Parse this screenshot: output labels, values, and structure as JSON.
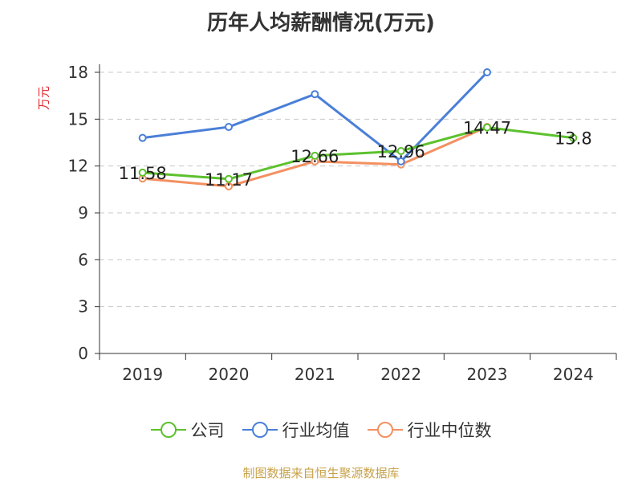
{
  "chart_data": {
    "type": "line",
    "title": "历年人均薪酬情况(万元)",
    "ylabel": "万元",
    "xlabel": "",
    "categories": [
      "2019",
      "2020",
      "2021",
      "2022",
      "2023",
      "2024"
    ],
    "ylim": [
      0,
      18
    ],
    "yticks": [
      0,
      3,
      6,
      9,
      12,
      15,
      18
    ],
    "grid": "horizontal-dashed",
    "legend_position": "bottom",
    "series": [
      {
        "name": "公司",
        "color": "#5cc12d",
        "values": [
          11.58,
          11.17,
          12.66,
          12.96,
          14.47,
          13.8
        ],
        "labels": [
          "11.58",
          "11.17",
          "12.66",
          "12.96",
          "14.47",
          "13.8"
        ]
      },
      {
        "name": "行业均值",
        "color": "#4a7fd8",
        "values": [
          13.8,
          14.5,
          16.6,
          12.3,
          18.0,
          null
        ]
      },
      {
        "name": "行业中位数",
        "color": "#f39060",
        "values": [
          11.2,
          10.7,
          12.3,
          12.1,
          14.5,
          null
        ]
      }
    ]
  },
  "footer": "制图数据来自恒生聚源数据库"
}
